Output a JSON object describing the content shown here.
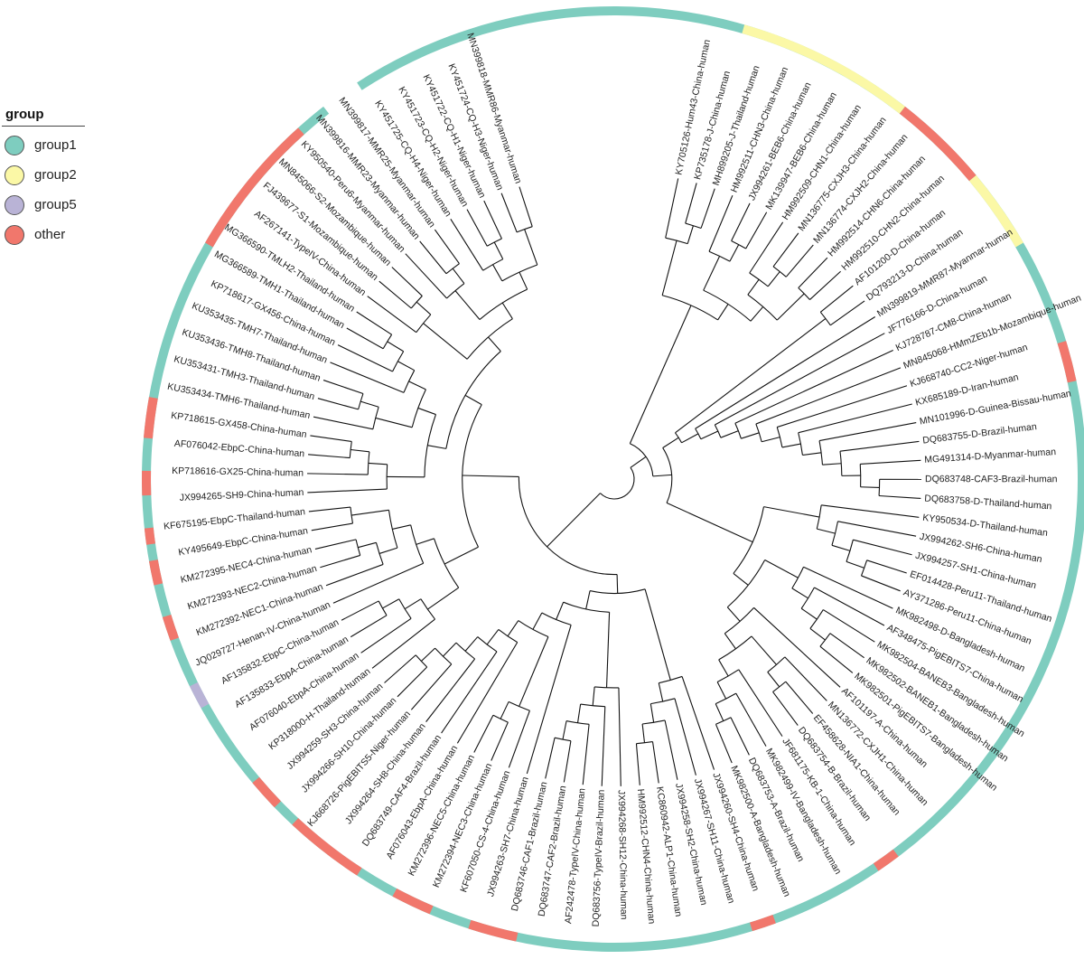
{
  "legend": {
    "title": "group",
    "items": [
      {
        "key": "group1",
        "label": "group1",
        "color": "#7ecdbf"
      },
      {
        "key": "group2",
        "label": "group2",
        "color": "#fbf8a6"
      },
      {
        "key": "group5",
        "label": "group5",
        "color": "#b9b3d6"
      },
      {
        "key": "other",
        "label": "other",
        "color": "#f1776c"
      }
    ]
  },
  "tree": {
    "layout": "circular",
    "branch_color": "#111111",
    "ring_background": "group1",
    "leaves": [
      "KY705126-Hum43-China-human",
      "KP735178-J-China-human",
      "MH899205-J-Thailand-human",
      "HM992511-CHN3-China-human",
      "JX994261-BEB6-China-human",
      "MK139947-BEB6-China-human",
      "HM992509-CHN1-China-human",
      "MN136775-CXJH3-China-human",
      "MN136774-CXJH2-China-human",
      "HM992514-CHN6-China-human",
      "HM992510-CHN2-China-human",
      "AF101200-D-China-human",
      "DQ793213-D-China-human",
      "MN399819-MMR87-Myanmar-human",
      "JF776166-D-China-human",
      "KJ728787-CM8-China-human",
      "MN845068-HMmZEb1b-Mozambique-human",
      "KJ668740-CC2-Niger-human",
      "KX685189-D-Iran-human",
      "MN101996-D-Guinea-Bissau-human",
      "DQ683755-D-Brazil-human",
      "MG491314-D-Myanmar-human",
      "DQ683748-CAF3-Brazil-human",
      "DQ683758-D-Thailand-human",
      "KY950534-D-Thailand-human",
      "JX994262-SH6-China-human",
      "JX994257-SH1-China-human",
      "EF014428-Peru11-Thailand-human",
      "AY371286-Peru11-China-human",
      "MK982498-D-Bangladesh-human",
      "AF348475-PigEBITS7-China-human",
      "MK982504-BANEB3-Bangladesh-human",
      "MK982502-BANEB1-Bangladesh-human",
      "MK982501-PigEBITS7-Bangladesh-human",
      "AF101197-A-China-human",
      "MN136772-CXJH1-China-human",
      "EF458628-NIA1-China-human",
      "DQ683754-B-Brazil-human",
      "JF681175-KB-1-China-human",
      "MK982499-IV-Bangladesh-human",
      "DQ683753-A-Brazil-human",
      "MK982500-A-Bangladesh-human",
      "JX994260-SH4-China-human",
      "JX994267-SH11-China-human",
      "JX994258-SH2-China-human",
      "KC860942-ALP1-China-human",
      "HM992512-CHN4-China-human",
      "JX994268-SH12-China-human",
      "DQ683756-TypeIV-Brazil-human",
      "AF242478-TypeIV-China-human",
      "DQ683747-CAF2-Brazil-human",
      "DQ683746-CAF1-Brazil-human",
      "JX994263-SH7-China-human",
      "KF607050-CS-4-China-human",
      "KM272394-NEC3-China-human",
      "KM272396-NEC5-China-human",
      "AF076043-EbpA-China-human",
      "DQ683749-CAF4-Brazil-human",
      "JX994264-SH8-China-human",
      "KJ668726-PigEBITS5-Niger-human",
      "JX994266-SH10-China-human",
      "JX994259-SH3-China-human",
      "KP318000-H-Thailand-human",
      "AF076040-EbpA-China-human",
      "AF135833-EbpA-China-human",
      "AF135832-EbpC-China-human",
      "JQ029727-Henan-IV-China-human",
      "KM272392-NEC1-China-human",
      "KM272393-NEC2-China-human",
      "KM272395-NEC4-China-human",
      "KY495649-EbpC-China-human",
      "KF675195-EbpC-Thailand-human",
      "JX994265-SH9-China-human",
      "KP718616-GX25-China-human",
      "AF076042-EbpC-China-human",
      "KP718615-GX458-China-human",
      "KU353434-TMH6-Thailand-human",
      "KU353431-TMH3-Thailand-human",
      "KU353436-TMH8-Thailand-human",
      "KU353435-TMH7-Thailand-human",
      "KP718617-GX456-China-human",
      "MG366589-TMH1-Thailand-human",
      "MG366590-TMLH2-Thailand-human",
      "AF267141-TypeIV-China-human",
      "FJ439677-S1-Mozambique-human",
      "MN845066-S2-Mozambique-human",
      "KY950540-Peru6-Myanmar-human",
      "MN399816-MMR23-Myanmar-human",
      "MN399817-MMR25-Myanmar-human",
      "KY451725-CQ-H4-Niger-human",
      "KY451723-CQ-H2-Niger-human",
      "KY451722-CQ-H1-Niger-human",
      "KY451724-CQ-H3-Niger-human",
      "MN399818-MMR86-Myanmar-human"
    ],
    "ring_segments": [
      {
        "group": "group2",
        "from_deg": 16,
        "to_deg": 38
      },
      {
        "group": "other",
        "from_deg": 38,
        "to_deg": 50
      },
      {
        "group": "group2",
        "from_deg": 50,
        "to_deg": 60
      },
      {
        "group": "other",
        "from_deg": 73,
        "to_deg": 78
      },
      {
        "group": "other",
        "from_deg": 143,
        "to_deg": 146
      },
      {
        "group": "other",
        "from_deg": 160,
        "to_deg": 163
      },
      {
        "group": "other",
        "from_deg": 192,
        "to_deg": 198
      },
      {
        "group": "other",
        "from_deg": 203,
        "to_deg": 208
      },
      {
        "group": "other",
        "from_deg": 213,
        "to_deg": 223
      },
      {
        "group": "other",
        "from_deg": 226,
        "to_deg": 230
      },
      {
        "group": "group5",
        "from_deg": 241,
        "to_deg": 244
      },
      {
        "group": "other",
        "from_deg": 250,
        "to_deg": 253
      },
      {
        "group": "other",
        "from_deg": 257,
        "to_deg": 260
      },
      {
        "group": "other",
        "from_deg": 262,
        "to_deg": 264
      },
      {
        "group": "other",
        "from_deg": 268,
        "to_deg": 271
      },
      {
        "group": "other",
        "from_deg": 275,
        "to_deg": 280
      },
      {
        "group": "other",
        "from_deg": 300,
        "to_deg": 318
      }
    ],
    "ring_gap_deg": [
      322,
      327
    ]
  }
}
